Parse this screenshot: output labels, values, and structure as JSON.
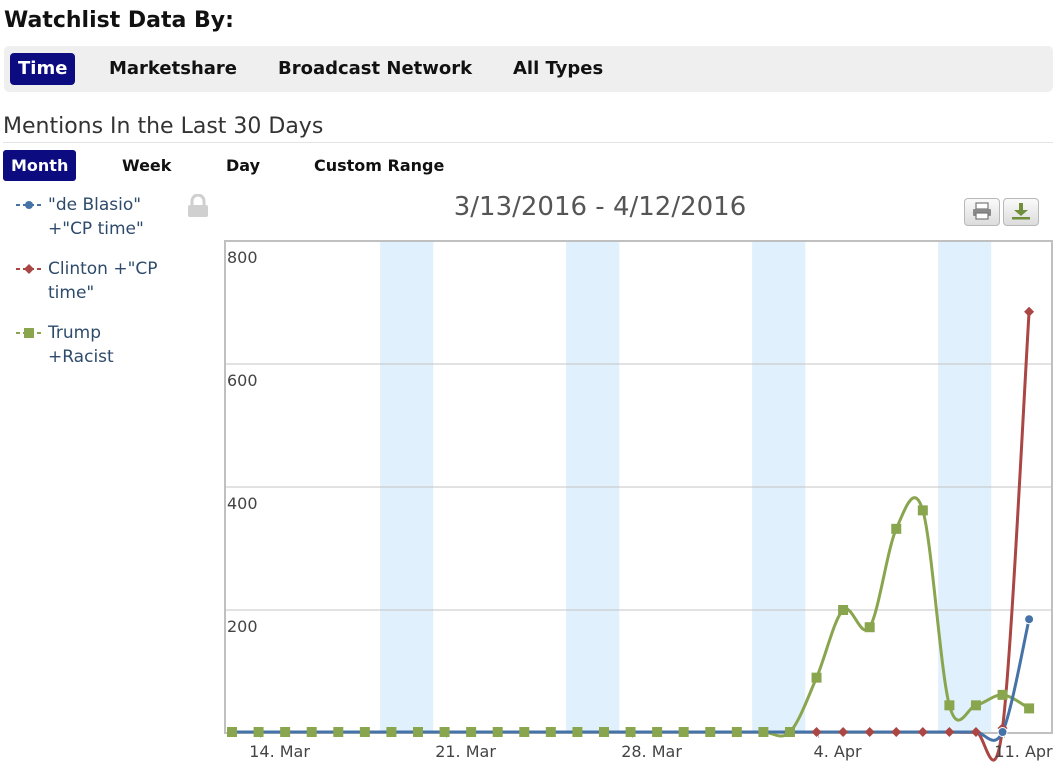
{
  "header": {
    "title": "Watchlist Data By:"
  },
  "tabs": [
    {
      "label": "Time",
      "active": true
    },
    {
      "label": "Marketshare",
      "active": false
    },
    {
      "label": "Broadcast Network",
      "active": false
    },
    {
      "label": "All Types",
      "active": false
    }
  ],
  "section": {
    "title": "Mentions In the Last 30 Days"
  },
  "range_tabs": [
    {
      "label": "Month",
      "active": true
    },
    {
      "label": "Week",
      "active": false
    },
    {
      "label": "Day",
      "active": false
    },
    {
      "label": "Custom Range",
      "active": false
    }
  ],
  "legend": [
    {
      "line1": "\"de Blasio\"",
      "line2": "+\"CP time\"",
      "color": "#4572a7",
      "marker": "circle"
    },
    {
      "line1": "Clinton +\"CP",
      "line2": "time\"",
      "color": "#aa4643",
      "marker": "diamond"
    },
    {
      "line1": "Trump",
      "line2": "+Racist",
      "color": "#89a54e",
      "marker": "square"
    }
  ],
  "icons": {
    "lock": "lock-icon",
    "print": "print-icon",
    "download": "download-icon"
  },
  "chart_data": {
    "type": "line",
    "title": "3/13/2016 - 4/12/2016",
    "x": [
      "2016-03-13",
      "2016-03-14",
      "2016-03-15",
      "2016-03-16",
      "2016-03-17",
      "2016-03-18",
      "2016-03-19",
      "2016-03-20",
      "2016-03-21",
      "2016-03-22",
      "2016-03-23",
      "2016-03-24",
      "2016-03-25",
      "2016-03-26",
      "2016-03-27",
      "2016-03-28",
      "2016-03-29",
      "2016-03-30",
      "2016-03-31",
      "2016-04-01",
      "2016-04-02",
      "2016-04-03",
      "2016-04-04",
      "2016-04-05",
      "2016-04-06",
      "2016-04-07",
      "2016-04-08",
      "2016-04-09",
      "2016-04-10",
      "2016-04-11",
      "2016-04-12"
    ],
    "x_ticks": [
      {
        "date": "2016-03-14",
        "label": "14. Mar"
      },
      {
        "date": "2016-03-21",
        "label": "21. Mar"
      },
      {
        "date": "2016-03-28",
        "label": "28. Mar"
      },
      {
        "date": "2016-04-04",
        "label": "4. Apr"
      },
      {
        "date": "2016-04-11",
        "label": "11. Apr"
      }
    ],
    "weekend_bands": [
      [
        "2016-03-19",
        "2016-03-21"
      ],
      [
        "2016-03-26",
        "2016-03-28"
      ],
      [
        "2016-04-02",
        "2016-04-04"
      ],
      [
        "2016-04-09",
        "2016-04-11"
      ]
    ],
    "y_ticks": [
      200,
      400,
      600,
      800
    ],
    "ylim": [
      0,
      800
    ],
    "grid": true,
    "legend_position": "left",
    "series": [
      {
        "name": "\"de Blasio\" +\"CP time\"",
        "color": "#4572a7",
        "marker": "circle",
        "values": [
          0,
          0,
          0,
          0,
          0,
          0,
          0,
          0,
          0,
          0,
          0,
          0,
          0,
          0,
          0,
          0,
          0,
          0,
          0,
          0,
          0,
          0,
          0,
          0,
          0,
          0,
          0,
          0,
          0,
          0,
          185
        ]
      },
      {
        "name": "Clinton +\"CP time\"",
        "color": "#aa4643",
        "marker": "diamond",
        "values": [
          0,
          0,
          0,
          0,
          0,
          0,
          0,
          0,
          0,
          0,
          0,
          0,
          0,
          0,
          0,
          0,
          0,
          0,
          0,
          0,
          0,
          0,
          0,
          0,
          0,
          0,
          0,
          0,
          0,
          8,
          685
        ]
      },
      {
        "name": "Trump +Racist",
        "color": "#89a54e",
        "marker": "square",
        "values": [
          0,
          0,
          0,
          0,
          0,
          0,
          0,
          0,
          0,
          0,
          0,
          0,
          0,
          0,
          0,
          0,
          0,
          0,
          0,
          0,
          0,
          0,
          90,
          200,
          172,
          332,
          362,
          45,
          45,
          62,
          40
        ]
      }
    ]
  }
}
